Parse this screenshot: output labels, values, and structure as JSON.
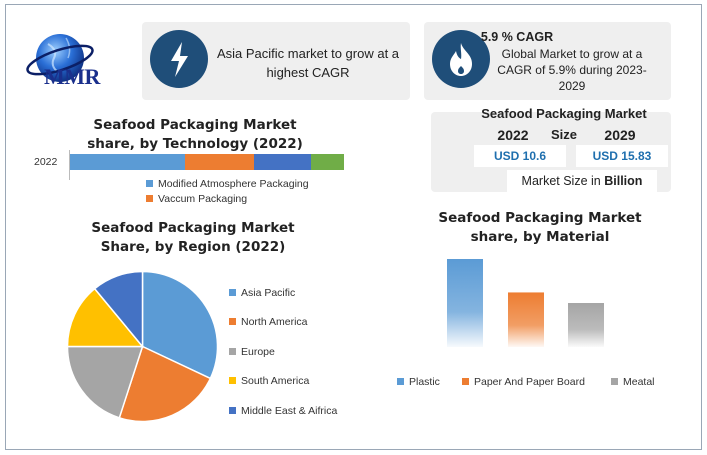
{
  "brand": {
    "logo_text": "MMR"
  },
  "highlight_asia": {
    "text": "Asia Pacific market to grow at a highest CAGR",
    "icon": "lightning-bolt-icon"
  },
  "highlight_cagr": {
    "title": "5.9 % CAGR",
    "text": "Global Market to grow at a CAGR of 5.9% during 2023-2029",
    "icon": "flame-icon"
  },
  "market_size": {
    "title": "Seafood Packaging Market Size",
    "year_a": "2022",
    "value_a": "USD 10.6",
    "year_b": "2029",
    "value_b": "USD 15.83",
    "unit_prefix": "Market Size in",
    "unit_bold": "Billion"
  },
  "colors": {
    "navy": "#1f4e79",
    "blue": "#5b9bd5",
    "orange": "#ed7d31",
    "gray": "#a5a5a5",
    "yellow": "#ffc000",
    "darkblue": "#4472c4",
    "green": "#70ad47"
  },
  "chart_data": [
    {
      "type": "bar",
      "orientation": "horizontal-stacked",
      "title": "Seafood Packaging Market share, by Technology (2022)",
      "categories": [
        "2022"
      ],
      "series": [
        {
          "name": "Modified Atmosphere Packaging",
          "values": [
            42
          ],
          "color": "#5b9bd5"
        },
        {
          "name": "Vaccum Packaging",
          "values": [
            25
          ],
          "color": "#ed7d31"
        },
        {
          "values": [
            21
          ],
          "color": "#4472c4"
        },
        {
          "values": [
            12
          ],
          "color": "#70ad47"
        }
      ],
      "legend_position": "bottom"
    },
    {
      "type": "pie",
      "title": "Seafood Packaging Market Share, by Region (2022)",
      "labels": [
        "Asia Pacific",
        "North America",
        "Europe",
        "South America",
        "Middle East & Aifrica"
      ],
      "values": [
        32,
        23,
        20,
        14,
        11
      ],
      "colors": [
        "#5b9bd5",
        "#ed7d31",
        "#a5a5a5",
        "#ffc000",
        "#4472c4"
      ],
      "legend_position": "right"
    },
    {
      "type": "bar",
      "title": "Seafood Packaging Market share, by Material",
      "categories": [
        "Plastic",
        "Paper And Paper Board",
        "Meatal"
      ],
      "values": [
        100,
        62,
        50
      ],
      "colors": [
        "#5b9bd5",
        "#ed7d31",
        "#a5a5a5"
      ],
      "ylim": [
        0,
        100
      ],
      "legend_position": "bottom"
    }
  ]
}
